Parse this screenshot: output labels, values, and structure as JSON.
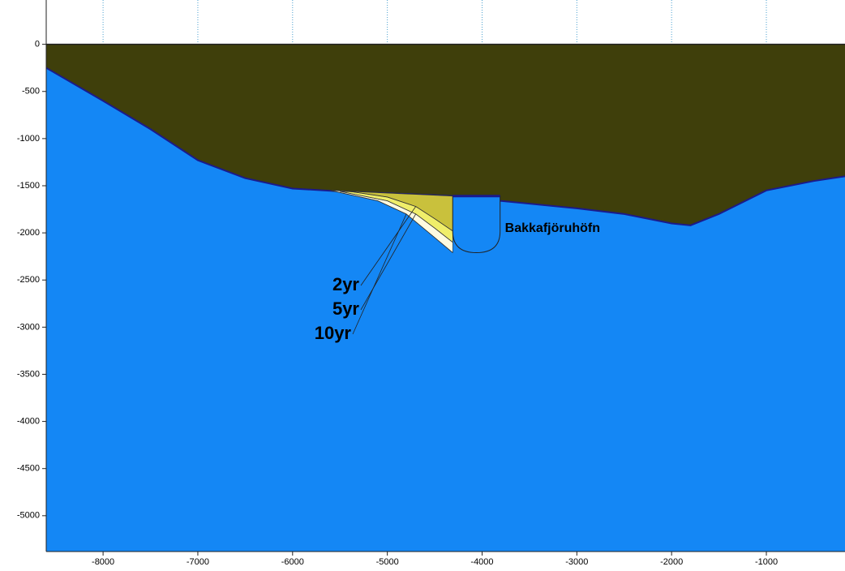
{
  "chart_data": {
    "type": "shoreline",
    "xlim": [
      -8600,
      -170
    ],
    "ylim": [
      -5380,
      470
    ],
    "xticks": [
      -8000,
      -7000,
      -6000,
      -5000,
      -4000,
      -3000,
      -2000,
      -1000
    ],
    "yticks": [
      0,
      -500,
      -1000,
      -1500,
      -2000,
      -2500,
      -3000,
      -3500,
      -4000,
      -4500,
      -5000
    ],
    "grid": true,
    "land_color": "#3f3f0b",
    "water_color": "#1487f5",
    "shoreline": {
      "x": [
        -8600,
        -8000,
        -7500,
        -7000,
        -6500,
        -6000,
        -5500,
        -5000,
        -4500,
        -4310,
        -3810,
        -3000,
        -2500,
        -2000,
        -1800,
        -1500,
        -1000,
        -500,
        -170
      ],
      "values": [
        -250,
        -600,
        -900,
        -1230,
        -1420,
        -1530,
        -1560,
        -1580,
        -1600,
        -1610,
        -1660,
        -1740,
        -1800,
        -1900,
        -1920,
        -1800,
        -1550,
        -1450,
        -1400
      ]
    },
    "series": [
      {
        "name": "10yr",
        "color": "#fffbe0",
        "x": [
          -5600,
          -5100,
          -4800,
          -4500,
          -4310
        ],
        "values": [
          -1550,
          -1660,
          -1800,
          -2050,
          -2210
        ]
      },
      {
        "name": "5yr",
        "color": "#f0ee6a",
        "x": [
          -5500,
          -5000,
          -4700,
          -4500,
          -4310
        ],
        "values": [
          -1560,
          -1660,
          -1800,
          -1950,
          -2100
        ]
      },
      {
        "name": "2yr",
        "color": "#c9c13c",
        "x": [
          -5400,
          -5000,
          -4700,
          -4500,
          -4310
        ],
        "values": [
          -1560,
          -1620,
          -1720,
          -1850,
          -1980
        ]
      }
    ],
    "breakwater": {
      "label": "Bakkafjöruhöfn",
      "x": [
        -4310,
        -3810
      ],
      "y": [
        -1610,
        -2210
      ]
    }
  }
}
